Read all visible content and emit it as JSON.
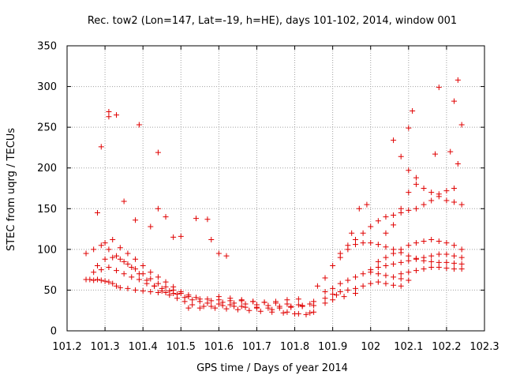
{
  "chart_data": {
    "type": "scatter",
    "title": "Rec. tow2 (Lon=147, Lat=-19, h=HE), days 101-102, 2014, window 001",
    "xlabel": "GPS time / Days of year 2014",
    "ylabel": "STEC from uqrg / TECUs",
    "xlim": [
      101.2,
      102.3
    ],
    "ylim": [
      0,
      350
    ],
    "x_ticks": [
      "101.2",
      "101.3",
      "101.4",
      "101.5",
      "101.6",
      "101.7",
      "101.8",
      "101.9",
      "102",
      "102.1",
      "102.2",
      "102.3"
    ],
    "y_ticks": [
      "0",
      "50",
      "100",
      "150",
      "200",
      "250",
      "300",
      "350"
    ],
    "grid": true,
    "legend": "none",
    "marker": "plus",
    "colors": {
      "points": "#e00000",
      "grid": "#a0a0a0",
      "axes": "#000000"
    },
    "series": [
      {
        "points": [
          [
            101.25,
            63
          ],
          [
            101.26,
            63
          ],
          [
            101.27,
            62
          ],
          [
            101.28,
            63
          ],
          [
            101.29,
            62
          ],
          [
            101.3,
            61
          ],
          [
            101.31,
            60
          ],
          [
            101.32,
            58
          ],
          [
            101.33,
            55
          ],
          [
            101.34,
            53
          ],
          [
            101.36,
            52
          ],
          [
            101.38,
            50
          ],
          [
            101.4,
            49
          ],
          [
            101.42,
            48
          ],
          [
            101.44,
            47
          ],
          [
            101.46,
            47
          ],
          [
            101.48,
            46
          ],
          [
            101.27,
            72
          ],
          [
            101.29,
            75
          ],
          [
            101.31,
            78
          ],
          [
            101.33,
            74
          ],
          [
            101.35,
            70
          ],
          [
            101.37,
            66
          ],
          [
            101.39,
            63
          ],
          [
            101.41,
            58
          ],
          [
            101.43,
            55
          ],
          [
            101.45,
            52
          ],
          [
            101.47,
            49
          ],
          [
            101.49,
            45
          ],
          [
            101.51,
            41
          ],
          [
            101.53,
            38
          ],
          [
            101.55,
            36
          ],
          [
            101.57,
            34
          ],
          [
            101.6,
            33
          ],
          [
            101.63,
            32
          ],
          [
            101.66,
            30
          ],
          [
            101.7,
            28
          ],
          [
            101.74,
            26
          ],
          [
            101.78,
            23
          ],
          [
            101.81,
            21
          ],
          [
            101.84,
            22
          ],
          [
            101.28,
            80
          ],
          [
            101.3,
            88
          ],
          [
            101.32,
            90
          ],
          [
            101.34,
            88
          ],
          [
            101.36,
            82
          ],
          [
            101.38,
            76
          ],
          [
            101.4,
            70
          ],
          [
            101.42,
            64
          ],
          [
            101.44,
            58
          ],
          [
            101.46,
            54
          ],
          [
            101.48,
            50
          ],
          [
            101.5,
            46
          ],
          [
            101.52,
            42
          ],
          [
            101.55,
            39
          ],
          [
            101.58,
            37
          ],
          [
            101.61,
            35
          ],
          [
            101.64,
            34
          ],
          [
            101.67,
            33
          ],
          [
            101.7,
            32
          ],
          [
            101.73,
            31
          ],
          [
            101.76,
            30
          ],
          [
            101.79,
            30
          ],
          [
            101.82,
            30
          ],
          [
            101.85,
            31
          ],
          [
            101.88,
            34
          ],
          [
            101.9,
            38
          ],
          [
            101.93,
            42
          ],
          [
            101.96,
            46
          ],
          [
            101.25,
            95
          ],
          [
            101.27,
            100
          ],
          [
            101.29,
            105
          ],
          [
            101.31,
            100
          ],
          [
            101.33,
            92
          ],
          [
            101.35,
            85
          ],
          [
            101.37,
            78
          ],
          [
            101.39,
            70
          ],
          [
            101.41,
            62
          ],
          [
            101.43,
            55
          ],
          [
            101.45,
            49
          ],
          [
            101.47,
            44
          ],
          [
            101.49,
            40
          ],
          [
            101.51,
            36
          ],
          [
            101.53,
            32
          ],
          [
            101.56,
            30
          ],
          [
            101.59,
            28
          ],
          [
            101.62,
            27
          ],
          [
            101.65,
            26
          ],
          [
            101.68,
            25
          ],
          [
            101.71,
            24
          ],
          [
            101.74,
            23
          ],
          [
            101.77,
            22
          ],
          [
            101.8,
            21
          ],
          [
            101.83,
            20
          ],
          [
            101.85,
            23
          ],
          [
            101.3,
            108
          ],
          [
            101.32,
            112
          ],
          [
            101.34,
            102
          ],
          [
            101.36,
            95
          ],
          [
            101.38,
            88
          ],
          [
            101.4,
            80
          ],
          [
            101.42,
            72
          ],
          [
            101.44,
            66
          ],
          [
            101.46,
            60
          ],
          [
            101.48,
            54
          ],
          [
            101.5,
            48
          ],
          [
            101.52,
            44
          ],
          [
            101.54,
            41
          ],
          [
            101.57,
            39
          ],
          [
            101.6,
            38
          ],
          [
            101.63,
            37
          ],
          [
            101.66,
            37
          ],
          [
            101.69,
            36
          ],
          [
            101.72,
            35
          ],
          [
            101.75,
            34
          ],
          [
            101.78,
            33
          ],
          [
            101.81,
            32
          ],
          [
            101.84,
            33
          ],
          [
            101.52,
            28
          ],
          [
            101.55,
            28
          ],
          [
            101.58,
            30
          ],
          [
            101.61,
            31
          ],
          [
            101.64,
            30
          ],
          [
            101.67,
            29
          ],
          [
            101.7,
            29
          ],
          [
            101.73,
            28
          ],
          [
            101.76,
            28
          ],
          [
            101.79,
            29
          ],
          [
            101.82,
            31
          ],
          [
            101.85,
            36
          ],
          [
            101.88,
            40
          ],
          [
            101.91,
            44
          ],
          [
            101.6,
            42
          ],
          [
            101.63,
            40
          ],
          [
            101.66,
            38
          ],
          [
            101.69,
            36
          ],
          [
            101.72,
            35
          ],
          [
            101.75,
            36
          ],
          [
            101.78,
            38
          ],
          [
            101.81,
            39
          ],
          [
            101.86,
            55
          ],
          [
            101.88,
            65
          ],
          [
            101.9,
            80
          ],
          [
            101.92,
            90
          ],
          [
            101.94,
            100
          ],
          [
            101.96,
            106
          ],
          [
            101.98,
            108
          ],
          [
            102.0,
            108
          ],
          [
            102.02,
            106
          ],
          [
            102.04,
            103
          ],
          [
            102.06,
            100
          ],
          [
            102.08,
            96
          ],
          [
            102.1,
            92
          ],
          [
            102.12,
            89
          ],
          [
            102.14,
            86
          ],
          [
            102.16,
            85
          ],
          [
            102.18,
            84
          ],
          [
            102.2,
            84
          ],
          [
            102.22,
            83
          ],
          [
            102.24,
            82
          ],
          [
            101.88,
            48
          ],
          [
            101.9,
            52
          ],
          [
            101.92,
            58
          ],
          [
            101.94,
            62
          ],
          [
            101.96,
            66
          ],
          [
            101.98,
            70
          ],
          [
            102.0,
            72
          ],
          [
            102.02,
            70
          ],
          [
            102.04,
            68
          ],
          [
            102.06,
            66
          ],
          [
            102.08,
            64
          ],
          [
            102.1,
            62
          ],
          [
            101.9,
            45
          ],
          [
            101.92,
            48
          ],
          [
            101.94,
            50
          ],
          [
            101.96,
            52
          ],
          [
            101.98,
            55
          ],
          [
            102.0,
            58
          ],
          [
            102.02,
            60
          ],
          [
            102.04,
            58
          ],
          [
            102.06,
            56
          ],
          [
            102.08,
            55
          ],
          [
            101.92,
            95
          ],
          [
            101.94,
            105
          ],
          [
            101.96,
            112
          ],
          [
            101.98,
            120
          ],
          [
            102.0,
            128
          ],
          [
            102.02,
            135
          ],
          [
            102.04,
            140
          ],
          [
            102.06,
            142
          ],
          [
            102.08,
            145
          ],
          [
            102.1,
            148
          ],
          [
            102.12,
            150
          ],
          [
            102.14,
            155
          ],
          [
            102.16,
            160
          ],
          [
            102.18,
            168
          ],
          [
            102.2,
            172
          ],
          [
            102.22,
            175
          ],
          [
            102.04,
            120
          ],
          [
            102.06,
            130
          ],
          [
            102.08,
            150
          ],
          [
            102.1,
            170
          ],
          [
            102.12,
            180
          ],
          [
            102.14,
            175
          ],
          [
            102.16,
            170
          ],
          [
            102.18,
            165
          ],
          [
            102.2,
            160
          ],
          [
            102.22,
            158
          ],
          [
            102.24,
            155
          ],
          [
            102.02,
            85
          ],
          [
            102.04,
            90
          ],
          [
            102.06,
            95
          ],
          [
            102.08,
            100
          ],
          [
            102.1,
            105
          ],
          [
            102.12,
            108
          ],
          [
            102.14,
            110
          ],
          [
            102.16,
            112
          ],
          [
            102.18,
            110
          ],
          [
            102.2,
            108
          ],
          [
            102.22,
            105
          ],
          [
            102.24,
            100
          ],
          [
            102.0,
            75
          ],
          [
            102.02,
            78
          ],
          [
            102.04,
            80
          ],
          [
            102.06,
            82
          ],
          [
            102.08,
            84
          ],
          [
            102.1,
            86
          ],
          [
            102.12,
            88
          ],
          [
            102.14,
            90
          ],
          [
            102.16,
            92
          ],
          [
            102.18,
            94
          ],
          [
            102.2,
            94
          ],
          [
            102.22,
            92
          ],
          [
            102.24,
            90
          ],
          [
            102.08,
            70
          ],
          [
            102.1,
            72
          ],
          [
            102.12,
            74
          ],
          [
            102.14,
            76
          ],
          [
            102.16,
            78
          ],
          [
            102.18,
            78
          ],
          [
            102.2,
            77
          ],
          [
            102.22,
            76
          ],
          [
            102.24,
            76
          ],
          [
            101.29,
            226
          ],
          [
            101.31,
            263
          ],
          [
            101.31,
            269
          ],
          [
            101.33,
            265
          ],
          [
            101.39,
            253
          ],
          [
            101.44,
            219
          ],
          [
            101.35,
            159
          ],
          [
            101.28,
            145
          ],
          [
            101.38,
            136
          ],
          [
            101.42,
            128
          ],
          [
            101.44,
            150
          ],
          [
            101.46,
            140
          ],
          [
            101.48,
            115
          ],
          [
            101.5,
            116
          ],
          [
            101.54,
            138
          ],
          [
            101.57,
            137
          ],
          [
            101.58,
            112
          ],
          [
            101.6,
            95
          ],
          [
            101.62,
            92
          ],
          [
            102.06,
            234
          ],
          [
            102.08,
            214
          ],
          [
            102.1,
            249
          ],
          [
            102.11,
            270
          ],
          [
            102.1,
            197
          ],
          [
            102.12,
            188
          ],
          [
            102.18,
            299
          ],
          [
            102.22,
            282
          ],
          [
            102.23,
            308
          ],
          [
            102.24,
            253
          ],
          [
            102.21,
            220
          ],
          [
            102.23,
            205
          ],
          [
            102.17,
            217
          ],
          [
            101.95,
            120
          ],
          [
            101.97,
            150
          ],
          [
            101.99,
            155
          ]
        ]
      }
    ]
  }
}
